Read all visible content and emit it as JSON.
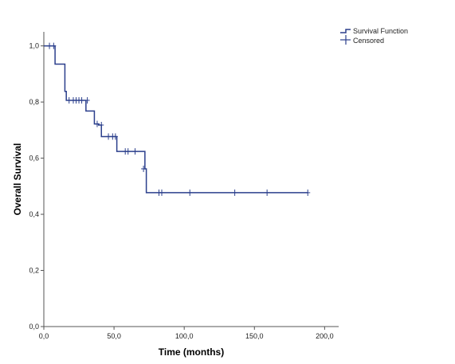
{
  "chart_data": {
    "type": "line",
    "xlabel": "Time (months)",
    "ylabel": "Overall Survival",
    "xlim": [
      0,
      210
    ],
    "ylim": [
      0,
      1.05
    ],
    "x_ticks": [
      "0,0",
      "50,0",
      "100,0",
      "150,0",
      "200,0"
    ],
    "x_tick_values": [
      0,
      50,
      100,
      150,
      200
    ],
    "y_ticks": [
      "0,0",
      "0,2",
      "0,4",
      "0,6",
      "0,8",
      "1,0"
    ],
    "y_tick_values": [
      0,
      0.2,
      0.4,
      0.6,
      0.8,
      1.0
    ],
    "grid": false,
    "legend_position": "top-right",
    "legend": [
      "Survival Function",
      "Censored"
    ],
    "series": [
      {
        "name": "Survival Function",
        "step": true,
        "x": [
          0,
          8,
          15,
          16,
          30,
          36,
          39,
          41,
          52,
          70,
          72,
          73,
          188
        ],
        "y": [
          1.0,
          0.935,
          0.838,
          0.806,
          0.768,
          0.722,
          0.718,
          0.677,
          0.624,
          0.624,
          0.562,
          0.477,
          0.477
        ]
      },
      {
        "name": "Censored",
        "x": [
          4,
          7,
          18,
          21,
          23,
          25,
          27,
          31,
          38,
          41,
          46,
          49,
          51,
          58,
          60,
          65,
          71,
          82,
          84,
          104,
          136,
          159,
          188
        ],
        "y": [
          1.0,
          1.0,
          0.806,
          0.806,
          0.806,
          0.806,
          0.806,
          0.806,
          0.722,
          0.718,
          0.677,
          0.677,
          0.677,
          0.624,
          0.624,
          0.624,
          0.562,
          0.477,
          0.477,
          0.477,
          0.477,
          0.477,
          0.477
        ]
      }
    ],
    "colors": {
      "line": "#2b3f8c",
      "axis": "#555555"
    }
  }
}
